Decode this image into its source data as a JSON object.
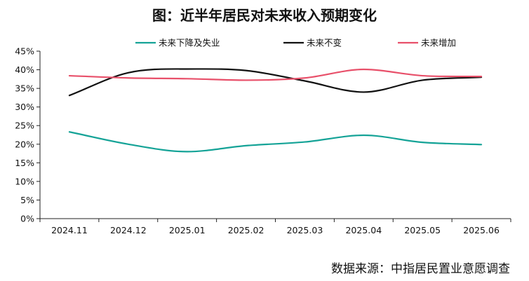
{
  "chart_data": {
    "type": "line",
    "title": "图：近半年居民对未来收入预期变化",
    "xlabel": "",
    "ylabel": "",
    "categories": [
      "2024.11",
      "2024.12",
      "2025.01",
      "2025.02",
      "2025.03",
      "2025.04",
      "2025.05",
      "2025.06"
    ],
    "ylim": [
      0,
      45
    ],
    "ytick_values": [
      0,
      5,
      10,
      15,
      20,
      25,
      30,
      35,
      40,
      45
    ],
    "ytick_labels": [
      "0%",
      "5%",
      "10%",
      "15%",
      "20%",
      "25%",
      "30%",
      "35%",
      "40%",
      "45%"
    ],
    "grid": false,
    "legend_position": "top",
    "series": [
      {
        "name": "未来下降及失业",
        "color": "#15A397",
        "values": [
          23.3,
          20.0,
          18.0,
          19.6,
          20.6,
          22.4,
          20.5,
          19.9
        ]
      },
      {
        "name": "未来不变",
        "color": "#111111",
        "values": [
          33.1,
          39.2,
          40.2,
          39.8,
          37.0,
          34.0,
          37.2,
          38.0
        ]
      },
      {
        "name": "未来增加",
        "color": "#E8506A",
        "values": [
          38.4,
          37.8,
          37.6,
          37.2,
          37.8,
          40.1,
          38.4,
          38.2
        ]
      }
    ],
    "source": "数据来源：中指居民置业意愿调查"
  }
}
